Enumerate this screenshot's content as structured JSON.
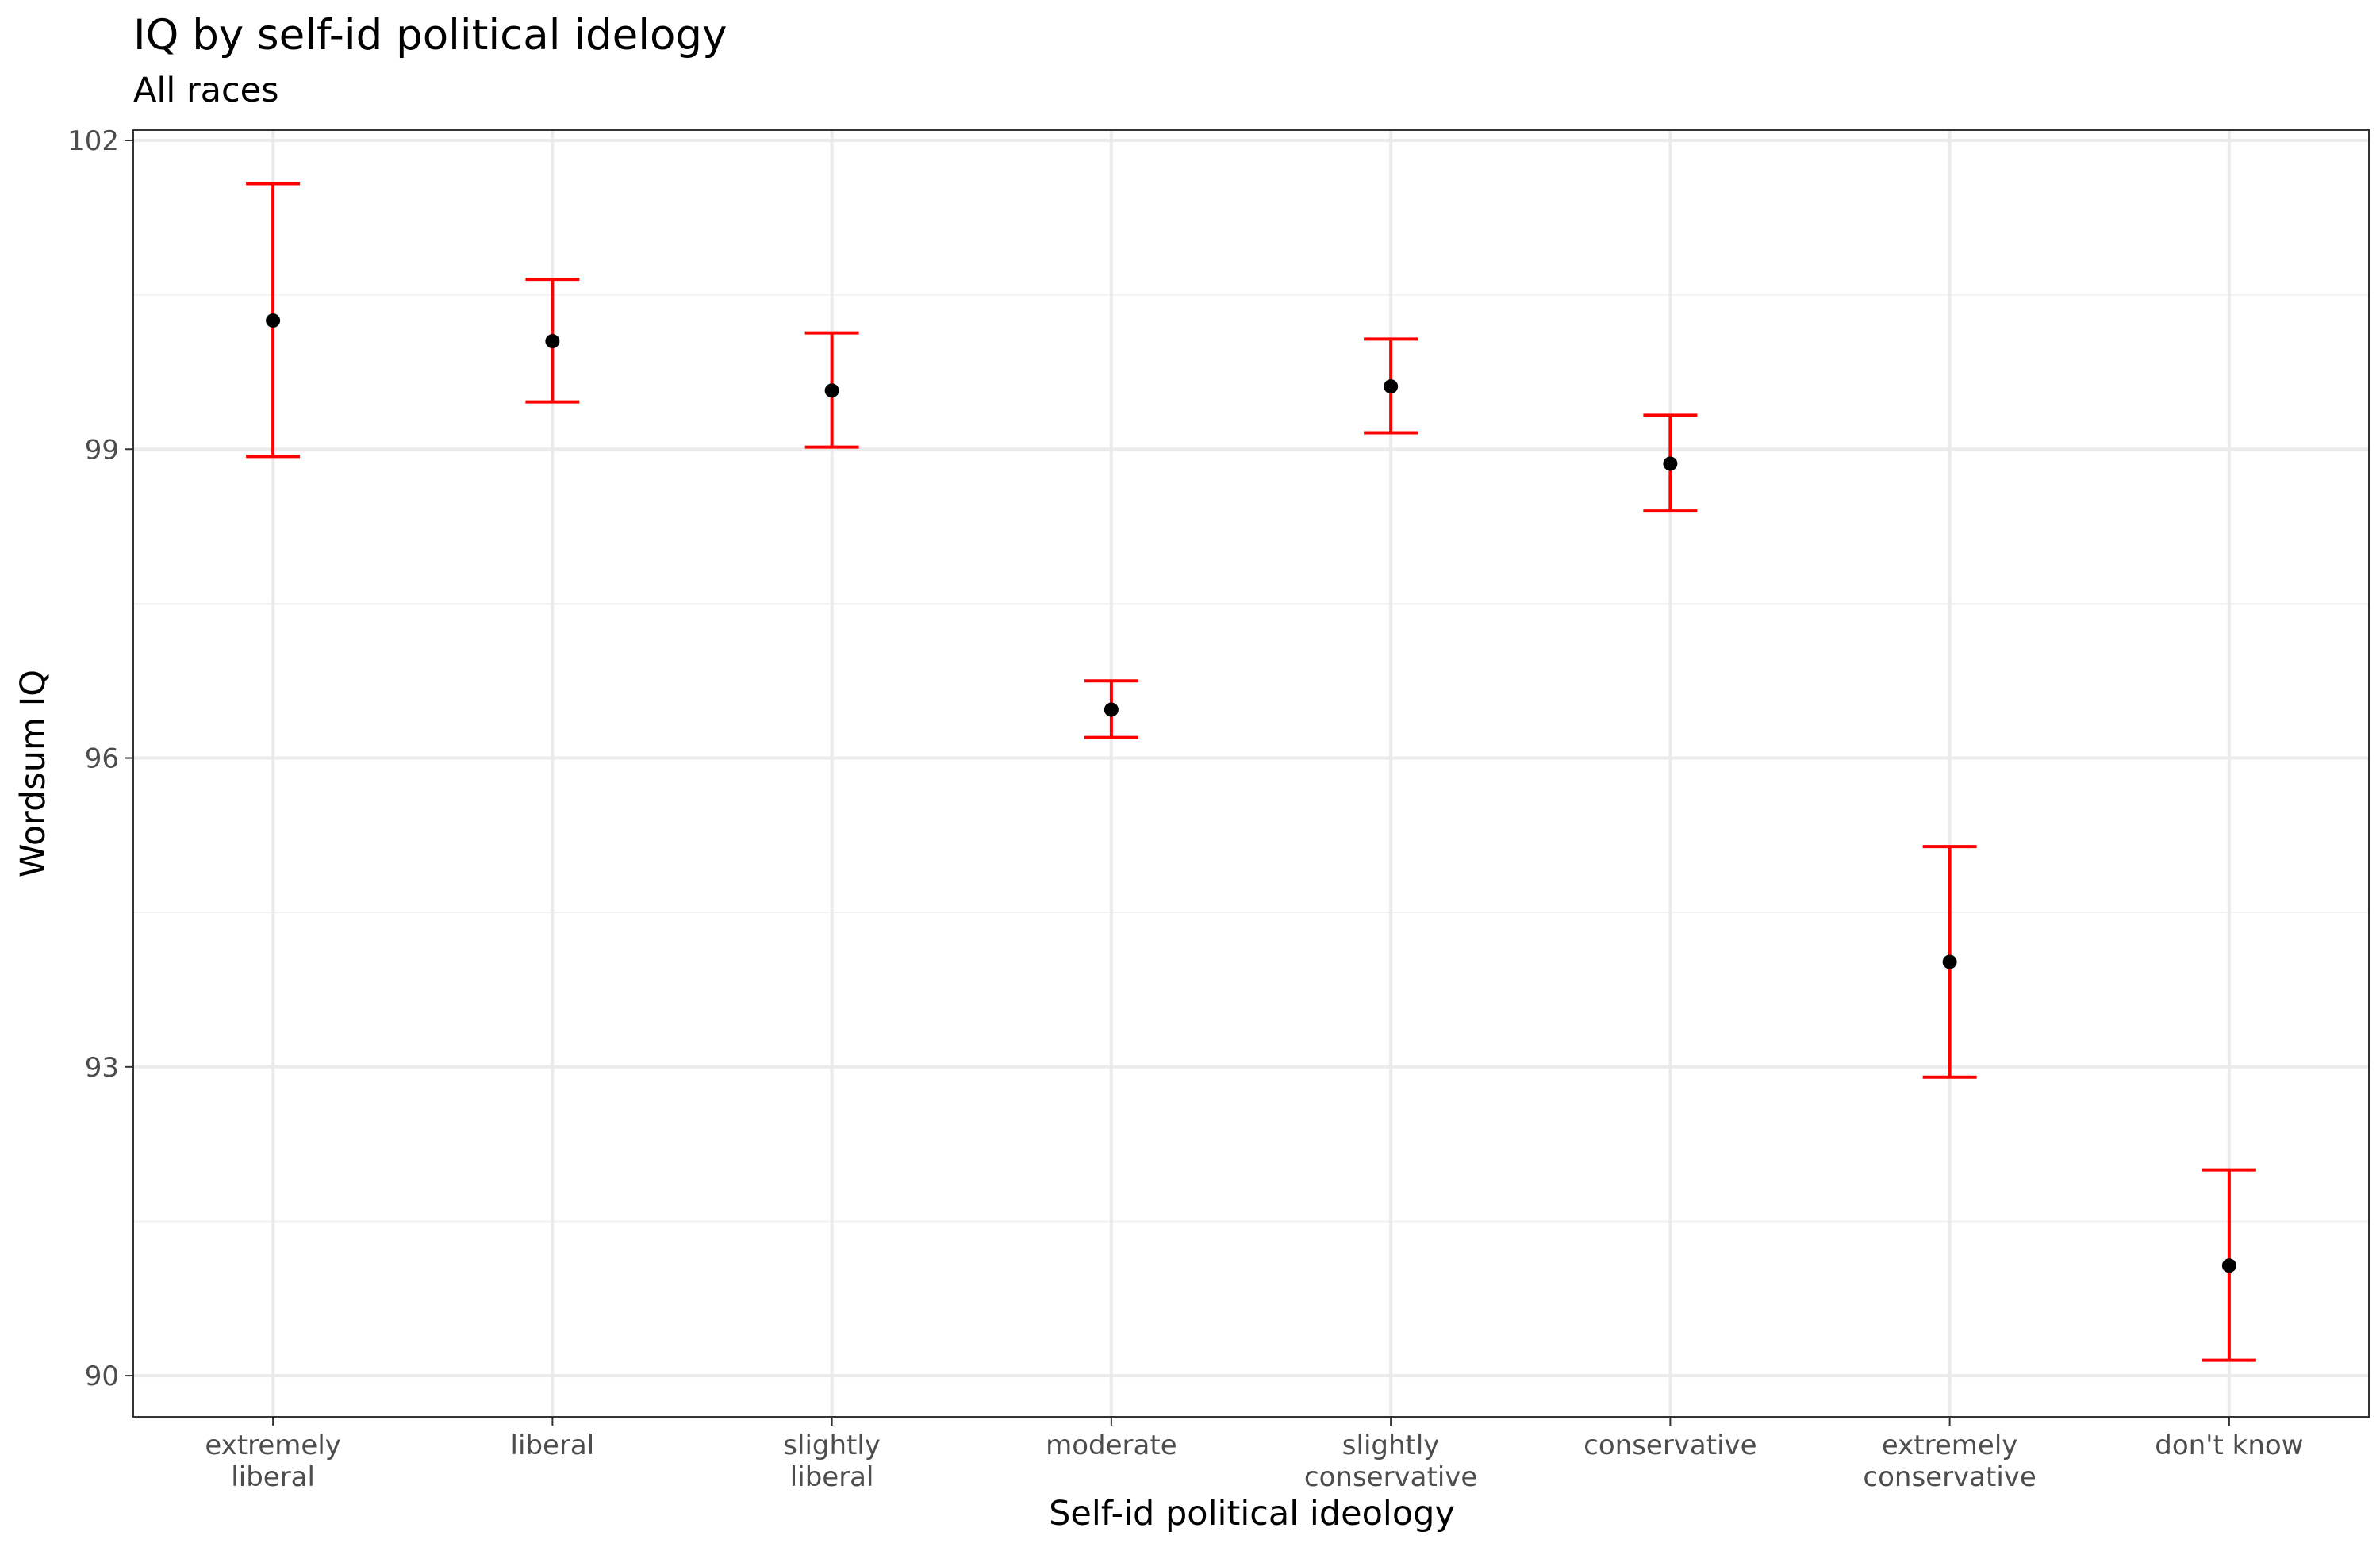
{
  "chart_data": {
    "type": "scatter",
    "title": "IQ by self-id political idelogy",
    "subtitle": "All races",
    "xlabel": "Self-id political ideology",
    "ylabel": "Wordsum IQ",
    "ylim": [
      89.6,
      102.1
    ],
    "y_ticks": [
      90,
      93,
      96,
      99,
      102
    ],
    "y_tick_labels": [
      "90",
      "93",
      "96",
      "99",
      "102"
    ],
    "categories": [
      [
        "extremely",
        "liberal"
      ],
      [
        "liberal"
      ],
      [
        "slightly",
        "liberal"
      ],
      [
        "moderate"
      ],
      [
        "slightly",
        "conservative"
      ],
      [
        "conservative"
      ],
      [
        "extremely",
        "conservative"
      ],
      [
        "don't know"
      ]
    ],
    "series": [
      {
        "values": [
          100.25,
          100.05,
          99.57,
          96.47,
          99.61,
          98.86,
          94.02,
          91.07
        ],
        "lower": [
          98.93,
          99.46,
          99.02,
          96.2,
          99.16,
          98.4,
          92.9,
          90.15
        ],
        "upper": [
          101.58,
          100.65,
          100.13,
          96.75,
          100.07,
          99.33,
          95.14,
          92.0
        ]
      }
    ],
    "grid": true,
    "legend": "none",
    "colors": {
      "point": "#000000",
      "errorbar": "#ff0000",
      "grid_major": "#ebebeb",
      "grid_minor": "#f2f2f2",
      "panel_border": "#333333",
      "tick_text": "#4d4d4d"
    }
  }
}
